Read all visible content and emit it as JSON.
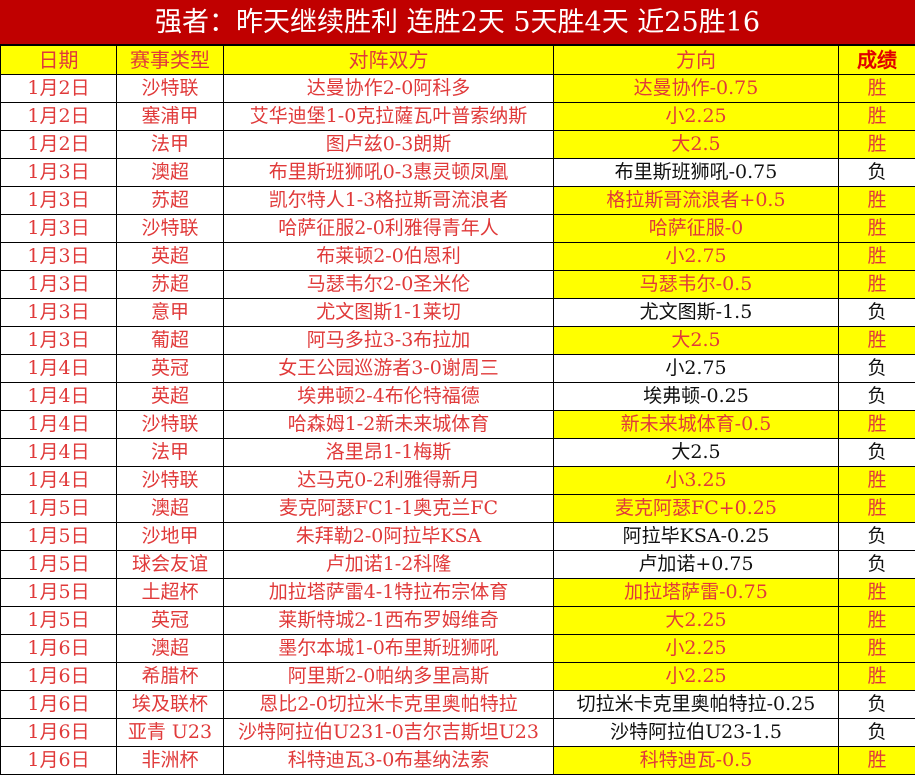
{
  "title": "强者：昨天继续胜利 连胜2天 5天胜4天 近25胜16",
  "headers": {
    "date": "日期",
    "league": "赛事类型",
    "match": "对阵双方",
    "pick": "方向",
    "result": "成绩"
  },
  "colors": {
    "title_bg": "#c00000",
    "highlight": "#ffff00",
    "text_red": "#e03a3a"
  },
  "rows": [
    {
      "date": "1月2日",
      "league": "沙特联",
      "match": "达曼协作2-0阿科多",
      "pick": "达曼协作-0.75",
      "result": "胜"
    },
    {
      "date": "1月2日",
      "league": "塞浦甲",
      "match": "艾华迪堡1-0克拉薩瓦叶普索纳斯",
      "pick": "小2.25",
      "result": "胜"
    },
    {
      "date": "1月2日",
      "league": "法甲",
      "match": "图卢兹0-3朗斯",
      "pick": "大2.5",
      "result": "胜"
    },
    {
      "date": "1月3日",
      "league": "澳超",
      "match": "布里斯班狮吼0-3惠灵顿凤凰",
      "pick": "布里斯班狮吼-0.75",
      "result": "负"
    },
    {
      "date": "1月3日",
      "league": "苏超",
      "match": "凯尔特人1-3格拉斯哥流浪者",
      "pick": "格拉斯哥流浪者+0.5",
      "result": "胜"
    },
    {
      "date": "1月3日",
      "league": "沙特联",
      "match": "哈萨征服2-0利雅得青年人",
      "pick": "哈萨征服-0",
      "result": "胜"
    },
    {
      "date": "1月3日",
      "league": "英超",
      "match": "布莱顿2-0伯恩利",
      "pick": "小2.75",
      "result": "胜"
    },
    {
      "date": "1月3日",
      "league": "苏超",
      "match": "马瑟韦尔2-0圣米伦",
      "pick": "马瑟韦尔-0.5",
      "result": "胜"
    },
    {
      "date": "1月3日",
      "league": "意甲",
      "match": "尤文图斯1-1莱切",
      "pick": "尤文图斯-1.5",
      "result": "负"
    },
    {
      "date": "1月3日",
      "league": "葡超",
      "match": "阿马多拉3-3布拉加",
      "pick": "大2.5",
      "result": "胜"
    },
    {
      "date": "1月4日",
      "league": "英冠",
      "match": "女王公园巡游者3-0谢周三",
      "pick": "小2.75",
      "result": "负"
    },
    {
      "date": "1月4日",
      "league": "英超",
      "match": "埃弗顿2-4布伦特福德",
      "pick": "埃弗顿-0.25",
      "result": "负"
    },
    {
      "date": "1月4日",
      "league": "沙特联",
      "match": "哈森姆1-2新未来城体育",
      "pick": "新未来城体育-0.5",
      "result": "胜"
    },
    {
      "date": "1月4日",
      "league": "法甲",
      "match": "洛里昂1-1梅斯",
      "pick": "大2.5",
      "result": "负"
    },
    {
      "date": "1月4日",
      "league": "沙特联",
      "match": "达马克0-2利雅得新月",
      "pick": "小3.25",
      "result": "胜"
    },
    {
      "date": "1月5日",
      "league": "澳超",
      "match": "麦克阿瑟FC1-1奥克兰FC",
      "pick": "麦克阿瑟FC+0.25",
      "result": "胜"
    },
    {
      "date": "1月5日",
      "league": "沙地甲",
      "match": "朱拜勒2-0阿拉毕KSA",
      "pick": "阿拉毕KSA-0.25",
      "result": "负"
    },
    {
      "date": "1月5日",
      "league": "球会友谊",
      "match": "卢加诺1-2科隆",
      "pick": "卢加诺+0.75",
      "result": "负"
    },
    {
      "date": "1月5日",
      "league": "土超杯",
      "match": "加拉塔萨雷4-1特拉布宗体育",
      "pick": "加拉塔萨雷-0.75",
      "result": "胜"
    },
    {
      "date": "1月5日",
      "league": "英冠",
      "match": "莱斯特城2-1西布罗姆维奇",
      "pick": "大2.25",
      "result": "胜"
    },
    {
      "date": "1月6日",
      "league": "澳超",
      "match": "墨尔本城1-0布里斯班狮吼",
      "pick": "小2.25",
      "result": "胜"
    },
    {
      "date": "1月6日",
      "league": "希腊杯",
      "match": "阿里斯2-0帕纳多里高斯",
      "pick": "小2.25",
      "result": "胜"
    },
    {
      "date": "1月6日",
      "league": "埃及联杯",
      "match": "恩比2-0切拉米卡克里奥帕特拉",
      "pick": "切拉米卡克里奥帕特拉-0.25",
      "result": "负"
    },
    {
      "date": "1月6日",
      "league": "亚青 U23",
      "match": "沙特阿拉伯U231-0吉尔吉斯坦U23",
      "pick": "沙特阿拉伯U23-1.5",
      "result": "负"
    },
    {
      "date": "1月6日",
      "league": "非洲杯",
      "match": "科特迪瓦3-0布基纳法索",
      "pick": "科特迪瓦-0.5",
      "result": "胜"
    }
  ]
}
